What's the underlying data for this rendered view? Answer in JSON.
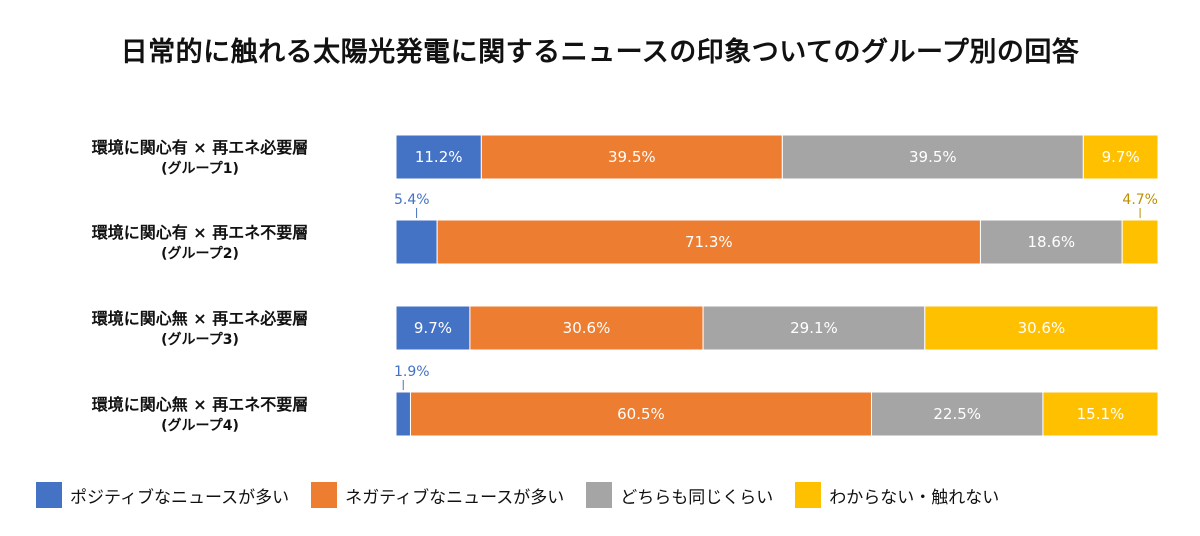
{
  "chart_data": {
    "type": "bar",
    "orientation": "horizontal",
    "stacked": true,
    "title": "日常的に触れる太陽光発電に関するニュースの印象ついてのグループ別の回答",
    "categories": [
      {
        "line1": "環境に関心有 × 再エネ必要層",
        "line2": "(グループ1)"
      },
      {
        "line1": "環境に関心有 × 再エネ不要層",
        "line2": "(グループ2)"
      },
      {
        "line1": "環境に関心無 × 再エネ必要層",
        "line2": "(グループ3)"
      },
      {
        "line1": "環境に関心無 × 再エネ不要層",
        "line2": "(グループ4)"
      }
    ],
    "series": [
      {
        "name": "ポジティブなニュースが多い",
        "color": "#4472C4",
        "values": [
          11.2,
          5.4,
          9.7,
          1.9
        ],
        "labels": [
          "11.2%",
          "5.4%",
          "9.7%",
          "1.9%"
        ]
      },
      {
        "name": "ネガティブなニュースが多い",
        "color": "#ED7D31",
        "values": [
          39.5,
          71.3,
          30.6,
          60.5
        ],
        "labels": [
          "39.5%",
          "71.3%",
          "30.6%",
          "60.5%"
        ]
      },
      {
        "name": "どちらも同じくらい",
        "color": "#A5A5A5",
        "values": [
          39.5,
          18.6,
          29.1,
          22.5
        ],
        "labels": [
          "39.5%",
          "18.6%",
          "29.1%",
          "22.5%"
        ]
      },
      {
        "name": "わからない・触れない",
        "color": "#FFC000",
        "values": [
          9.7,
          4.7,
          30.6,
          15.1
        ],
        "labels": [
          "9.7%",
          "4.7%",
          "30.6%",
          "15.1%"
        ]
      }
    ],
    "xlim": [
      0,
      100
    ],
    "legend_position": "bottom",
    "grid": false
  }
}
